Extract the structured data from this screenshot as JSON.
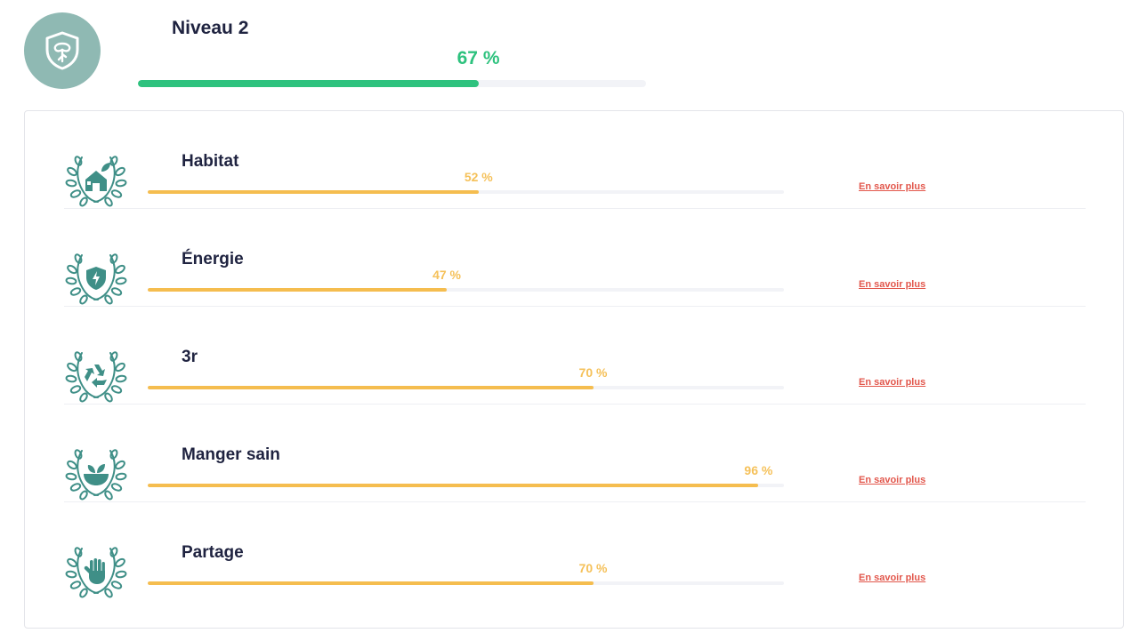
{
  "level": {
    "title": "Niveau 2",
    "percent_label": "67 %",
    "progress": 0.67,
    "color": "#2ec27e",
    "badge_icon": "shield-tree-icon"
  },
  "categories": [
    {
      "title": "Habitat",
      "percent_label": "52 %",
      "progress": 0.52,
      "icon": "house-leaf-icon",
      "link": "En savoir plus"
    },
    {
      "title": "Énergie",
      "percent_label": "47 %",
      "progress": 0.47,
      "icon": "shield-bolt-icon",
      "link": "En savoir plus"
    },
    {
      "title": "3r",
      "percent_label": "70 %",
      "progress": 0.7,
      "icon": "recycle-icon",
      "link": "En savoir plus"
    },
    {
      "title": "Manger sain",
      "percent_label": "96 %",
      "progress": 0.96,
      "icon": "salad-bowl-icon",
      "link": "En savoir plus"
    },
    {
      "title": "Partage",
      "percent_label": "70 %",
      "progress": 0.7,
      "icon": "hand-icon",
      "link": "En savoir plus"
    }
  ],
  "colors": {
    "category_bar": "#f5bd4f",
    "category_pct": "#f5c15a",
    "link": "#e2574c",
    "icon": "#3f8f87"
  }
}
